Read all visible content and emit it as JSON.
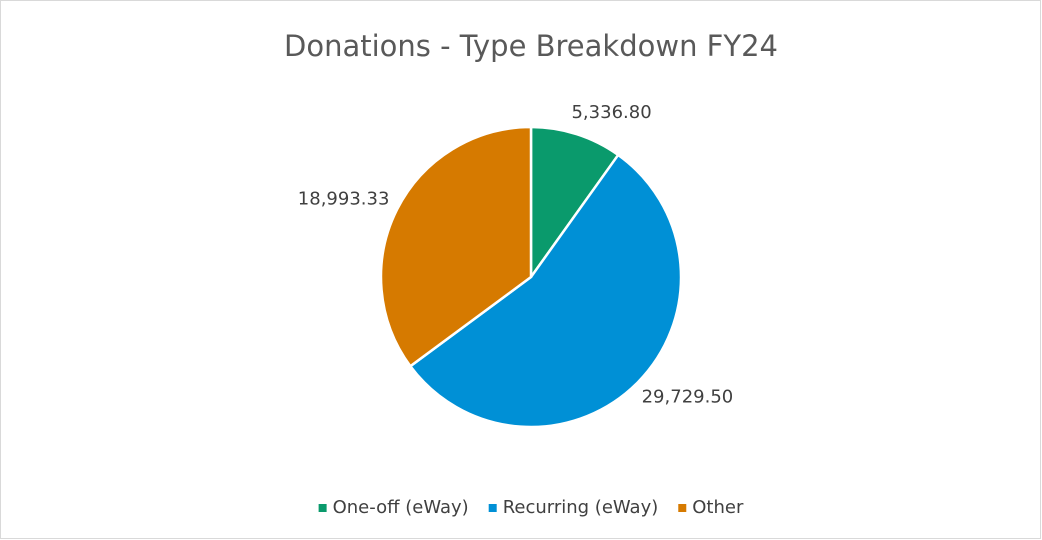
{
  "chart_data": {
    "type": "pie",
    "title": "Donations - Type Breakdown FY24",
    "categories": [
      "One-off (eWay)",
      "Recurring (eWay)",
      "Other"
    ],
    "values": [
      5336.8,
      29729.5,
      18993.33
    ],
    "value_labels": [
      "5,336.80",
      "29,729.50",
      "18,993.33"
    ],
    "colors": [
      "#0a9a6c",
      "#0090d6",
      "#d67a00"
    ],
    "legend": "bottom"
  }
}
